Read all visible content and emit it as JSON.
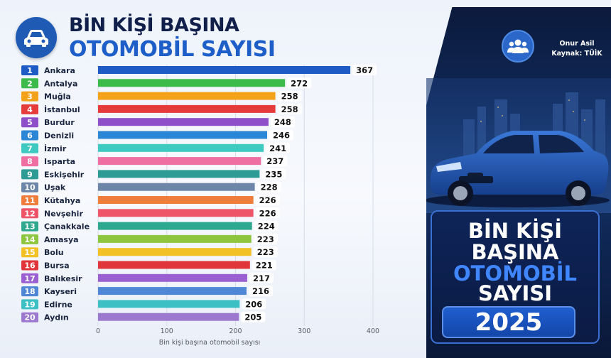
{
  "header": {
    "title_line1": "BİN KİŞİ BAŞINA",
    "title_line2": "OTOMOBİL SAYISI",
    "logo_icon": "car-icon"
  },
  "source": {
    "author": "Onur Asil",
    "source_text": "Kaynak: TÜİK",
    "icon": "people-group-icon"
  },
  "promo": {
    "line1": "BİN KİŞİ",
    "line2": "BAŞINA",
    "line3": "OTOMOBİL",
    "line4": "SAYISI",
    "year": "2025"
  },
  "chart_data": {
    "type": "bar",
    "orientation": "horizontal",
    "categories": [
      "Ankara",
      "Antalya",
      "Muğla",
      "İstanbul",
      "Burdur",
      "Denizli",
      "İzmir",
      "Isparta",
      "Eskişehir",
      "Uşak",
      "Kütahya",
      "Nevşehir",
      "Çanakkale",
      "Amasya",
      "Bolu",
      "Bursa",
      "Balıkesir",
      "Kayseri",
      "Edirne",
      "Aydın"
    ],
    "ranks": [
      "1",
      "2",
      "3",
      "4",
      "5",
      "6",
      "7",
      "8",
      "9",
      "10",
      "11",
      "12",
      "13",
      "14",
      "15",
      "16",
      "17",
      "18",
      "19",
      "20"
    ],
    "values": [
      367,
      272,
      258,
      258,
      248,
      246,
      241,
      237,
      235,
      228,
      226,
      226,
      224,
      223,
      223,
      221,
      217,
      216,
      206,
      205
    ],
    "colors": [
      "#1f5bc4",
      "#3dbb4a",
      "#f5a21b",
      "#e53b3b",
      "#8e4fc9",
      "#2b86d6",
      "#3fcac1",
      "#ef6fa2",
      "#2e9c95",
      "#6d86a8",
      "#ef7d3c",
      "#ef5568",
      "#2fa890",
      "#8ec63f",
      "#f2c125",
      "#e0363b",
      "#9a5fd0",
      "#4f86d6",
      "#3cc0c4",
      "#9c79cf"
    ],
    "xlabel": "Bin kişi başına otomobil sayısı",
    "ylabel": "",
    "xlim": [
      0,
      400
    ],
    "ticks": [
      "0",
      "100",
      "200",
      "300",
      "400"
    ],
    "grid": true
  }
}
